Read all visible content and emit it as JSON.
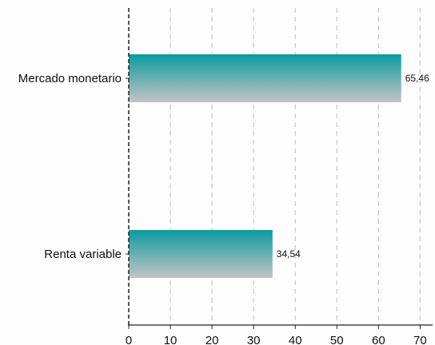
{
  "colors": {
    "bar_top": "#0a9ba0",
    "bar_bottom": "#c4c4c4",
    "grid": "#c8c8c8",
    "axis": "#222222",
    "zero_line": "#111111",
    "text": "#111111"
  },
  "chart_data": {
    "type": "bar",
    "orientation": "horizontal",
    "categories": [
      "Mercado monetario",
      "Renta variable"
    ],
    "values": [
      65.46,
      34.54
    ],
    "value_labels": [
      "65,46",
      "34,54"
    ],
    "xlim": [
      0,
      73
    ],
    "xticks": [
      0,
      10,
      20,
      30,
      40,
      50,
      60,
      70
    ],
    "xtick_labels": [
      "0",
      "10",
      "20",
      "30",
      "40",
      "50",
      "60",
      "70"
    ],
    "grid": "vertical dashed",
    "legend": "none",
    "title": "",
    "xlabel": "",
    "ylabel": ""
  }
}
